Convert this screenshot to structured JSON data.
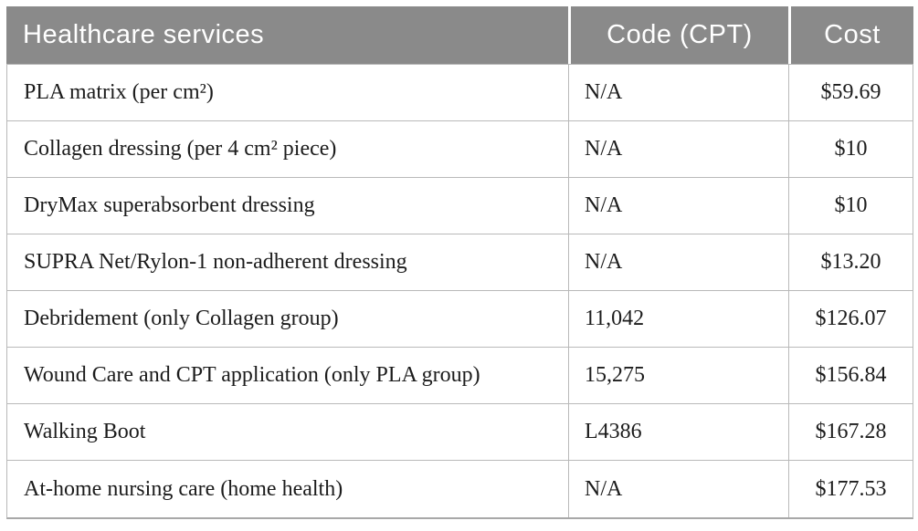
{
  "colors": {
    "header_background": "#8a8a8a",
    "header_text": "#ffffff",
    "border": "#b9b9b9",
    "body_text": "#1c1c1c",
    "page_background": "#ffffff"
  },
  "table": {
    "header": {
      "service": "Healthcare services",
      "code": "Code (CPT)",
      "cost": "Cost"
    },
    "rows": [
      {
        "service": "PLA matrix (per cm²)",
        "code": "N/A",
        "cost": "$59.69"
      },
      {
        "service": "Collagen dressing (per 4 cm² piece)",
        "code": "N/A",
        "cost": "$10"
      },
      {
        "service": "DryMax superabsorbent dressing",
        "code": "N/A",
        "cost": "$10"
      },
      {
        "service": "SUPRA Net/Rylon-1 non-adherent dressing",
        "code": "N/A",
        "cost": "$13.20"
      },
      {
        "service": "Debridement (only Collagen group)",
        "code": "11,042",
        "cost": "$126.07"
      },
      {
        "service": "Wound Care and CPT application (only PLA group)",
        "code": "15,275",
        "cost": "$156.84"
      },
      {
        "service": "Walking Boot",
        "code": "L4386",
        "cost": "$167.28"
      },
      {
        "service": "At-home nursing care (home health)",
        "code": "N/A",
        "cost": "$177.53"
      }
    ]
  }
}
